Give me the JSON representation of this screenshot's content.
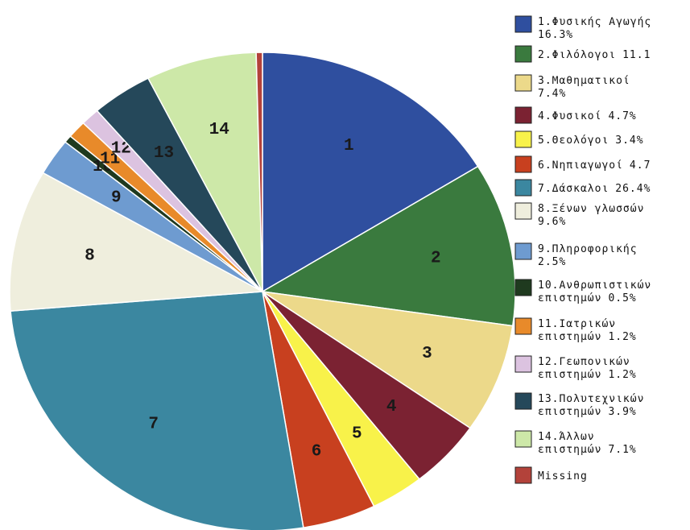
{
  "chart_data": {
    "type": "pie",
    "categories": [
      [
        "1.Φυσικής Αγωγής"
      ],
      [
        "2.Φιλόλογοι"
      ],
      [
        "3.Μαθηματικοί"
      ],
      [
        "4.Φυσικοί"
      ],
      [
        "5.Θεολόγοι"
      ],
      [
        "6.Νηπιαγωγοί"
      ],
      [
        "7.Δάσκαλοι"
      ],
      [
        "8.Ξένων γλωσσών"
      ],
      [
        "9.Πληροφορικής"
      ],
      [
        "10.Ανθρωπιστικών",
        "επιστημών"
      ],
      [
        "11.Ιατρικών",
        "επιστημών"
      ],
      [
        "12.Γεωπονικών",
        "επιστημών"
      ],
      [
        "13.Πολυτεχνικών",
        "επιστημών"
      ],
      [
        "14.Άλλων",
        "επιστημών"
      ],
      [
        "Missing"
      ]
    ],
    "values": [
      16.3,
      11.1,
      7.4,
      4.7,
      3.4,
      4.7,
      26.4,
      9.6,
      2.5,
      0.5,
      1.2,
      1.2,
      3.9,
      7.1,
      0.4
    ],
    "value_labels": [
      "16.3%",
      "11.1",
      "7.4%",
      "4.7%",
      "3.4%",
      "4.7",
      "26.4%",
      "9.6%",
      "2.5%",
      "0.5%",
      "1.2%",
      "1.2%",
      "3.9%",
      "7.1%",
      null
    ],
    "slice_labels": [
      "1",
      "2",
      "3",
      "4",
      "5",
      "6",
      "7",
      "8",
      "9",
      "10",
      "11",
      "12",
      "13",
      "14",
      null
    ],
    "colors": [
      "#2f4f9f",
      "#3a7a3e",
      "#ecd98a",
      "#7b2232",
      "#f8f24a",
      "#c8401f",
      "#3b87a0",
      "#efeedd",
      "#6e9bd0",
      "#1f3a1f",
      "#e88a2a",
      "#dcc3e0",
      "#25485a",
      "#cde8a8",
      "#b3423a"
    ]
  }
}
